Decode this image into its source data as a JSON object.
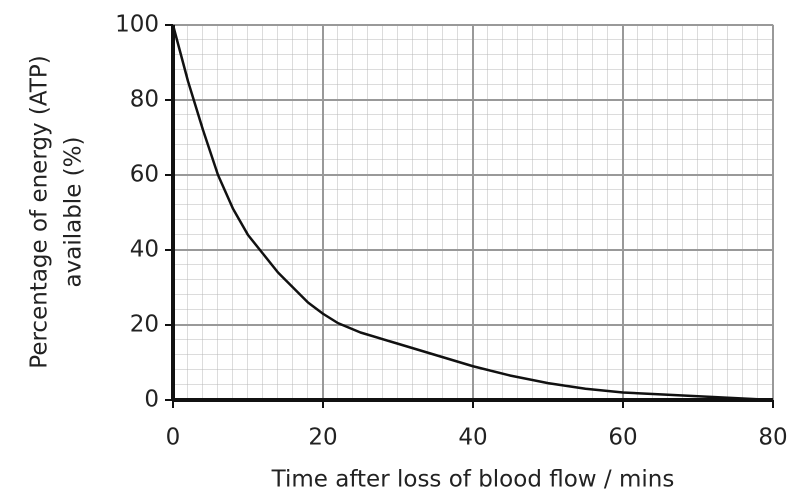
{
  "chart_data": {
    "type": "line",
    "x_label": "Time after loss of blood flow / mins",
    "y_label": [
      "Percentage of energy (ATP)",
      "available (%)"
    ],
    "series": [
      {
        "name": "ATP",
        "color": "#111111",
        "x": [
          0,
          2,
          4,
          6,
          8,
          10,
          12,
          14,
          16,
          18,
          20,
          22,
          25,
          30,
          35,
          40,
          45,
          50,
          55,
          60,
          65,
          70,
          75,
          80
        ],
        "values": [
          100,
          85,
          72,
          60,
          51,
          44,
          39,
          34,
          30,
          26,
          23,
          20.5,
          18,
          15,
          12,
          9,
          6.5,
          4.5,
          3,
          2,
          1.5,
          1,
          0.5,
          0
        ]
      }
    ],
    "xlim": [
      0,
      80
    ],
    "xticks": [
      0,
      20,
      40,
      60,
      80
    ],
    "ylim": [
      0,
      100
    ],
    "yticks": [
      0,
      20,
      40,
      60,
      80,
      100
    ],
    "grid": true
  }
}
